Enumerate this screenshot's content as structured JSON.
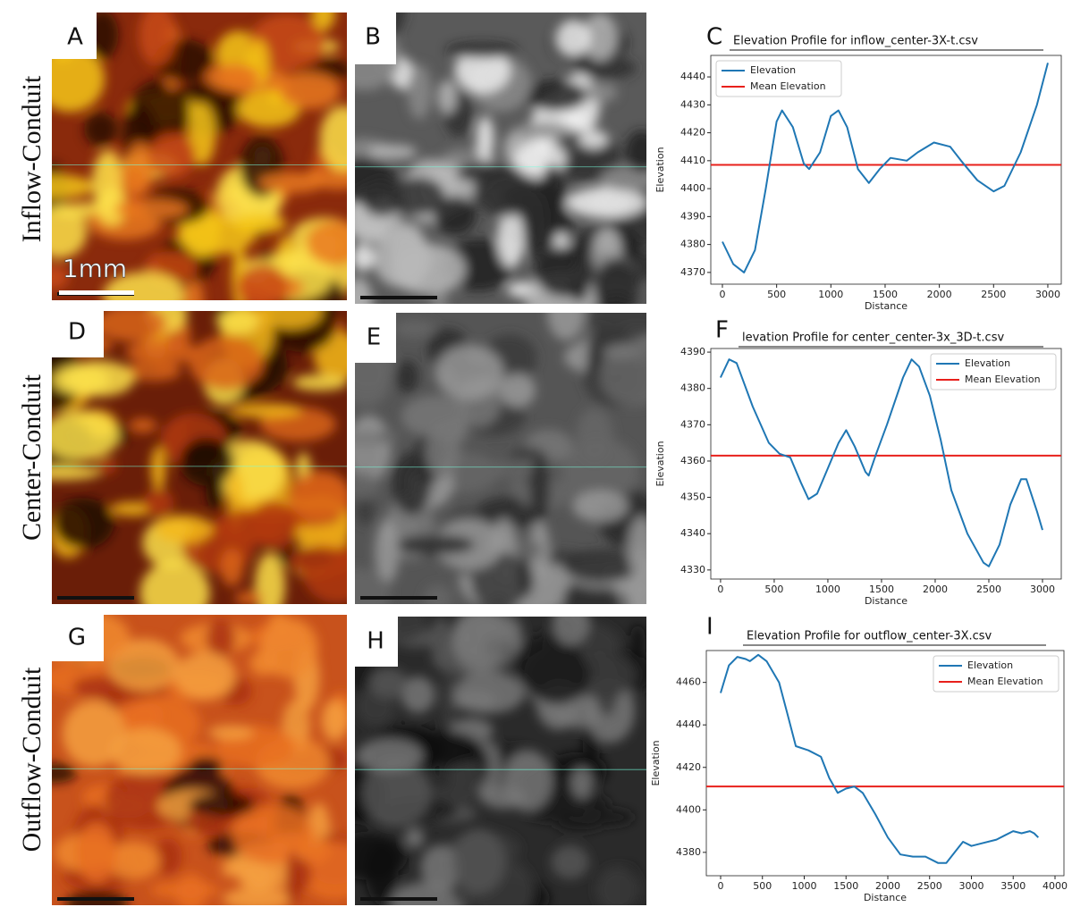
{
  "panels": {
    "letters": [
      "A",
      "B",
      "D",
      "E",
      "G",
      "H"
    ],
    "rows": [
      "Inflow-Conduit",
      "Center-Conduit",
      "Outflow-Conduit"
    ],
    "scale_label": "1mm"
  },
  "chart_data": [
    {
      "type": "line",
      "panel": "C",
      "title": "Elevation Profile for inflow_center-3X-t.csv",
      "x_label": "Distance",
      "y_label": "Elevation",
      "legend": "upper left",
      "xlim": [
        -107,
        3124
      ],
      "ylim": [
        4365.8,
        4447.7
      ],
      "xticks": [
        0,
        500,
        1000,
        1500,
        2000,
        2500,
        3000
      ],
      "yticks": [
        4370,
        4380,
        4390,
        4400,
        4410,
        4420,
        4430,
        4440
      ],
      "series": [
        {
          "name": "Elevation",
          "color": "#1f77b4",
          "x": [
            0,
            100,
            200,
            300,
            400,
            500,
            550,
            650,
            750,
            800,
            900,
            1000,
            1070,
            1150,
            1250,
            1350,
            1450,
            1550,
            1700,
            1800,
            1950,
            2100,
            2200,
            2350,
            2500,
            2600,
            2750,
            2900,
            3000
          ],
          "values": [
            4381,
            4373,
            4370,
            4378,
            4400,
            4424,
            4428,
            4422,
            4409,
            4407,
            4413,
            4426,
            4428,
            4422,
            4407,
            4402,
            4407,
            4411,
            4410,
            4413,
            4416.5,
            4415,
            4410,
            4403,
            4399,
            4401,
            4413,
            4430,
            4445
          ]
        }
      ],
      "mean_line": {
        "name": "Mean Elevation",
        "color": "#e8201b",
        "value": 4408.5
      }
    },
    {
      "type": "line",
      "panel": "F",
      "title": "levation Profile for center_center-3x_3D-t.csv",
      "x_label": "Distance",
      "y_label": "Elevation",
      "legend": "upper right",
      "xlim": [
        -91,
        3175
      ],
      "ylim": [
        4327.5,
        4391
      ],
      "xticks": [
        0,
        500,
        1000,
        1500,
        2000,
        2500,
        3000
      ],
      "yticks": [
        4330,
        4340,
        4350,
        4360,
        4370,
        4380,
        4390
      ],
      "series": [
        {
          "name": "Elevation",
          "color": "#1f77b4",
          "x": [
            0,
            80,
            150,
            300,
            450,
            550,
            650,
            750,
            820,
            900,
            1000,
            1100,
            1170,
            1250,
            1350,
            1380,
            1450,
            1550,
            1700,
            1780,
            1850,
            1950,
            2050,
            2150,
            2300,
            2450,
            2500,
            2600,
            2700,
            2800,
            2850,
            2950,
            3000
          ],
          "values": [
            4383,
            4388,
            4387,
            4375,
            4365,
            4362,
            4361,
            4354,
            4349.5,
            4351,
            4358,
            4365,
            4368.5,
            4364,
            4357,
            4356,
            4362,
            4370,
            4383,
            4388,
            4386,
            4378,
            4366,
            4352,
            4340,
            4332,
            4331,
            4337,
            4348,
            4355,
            4355,
            4346,
            4341
          ]
        }
      ],
      "mean_line": {
        "name": "Mean Elevation",
        "color": "#e8201b",
        "value": 4361.5
      }
    },
    {
      "type": "line",
      "panel": "I",
      "title": "Elevation Profile for outflow_center-3X.csv",
      "x_label": "Distance",
      "y_label": "Elevation",
      "legend": "upper right",
      "xlim": [
        -171,
        4107
      ],
      "ylim": [
        4369,
        4475
      ],
      "xticks": [
        0,
        500,
        1000,
        1500,
        2000,
        2500,
        3000,
        3500,
        4000
      ],
      "yticks": [
        4380,
        4400,
        4420,
        4440,
        4460
      ],
      "series": [
        {
          "name": "Elevation",
          "color": "#1f77b4",
          "x": [
            0,
            100,
            200,
            300,
            350,
            450,
            550,
            700,
            800,
            900,
            1050,
            1200,
            1300,
            1400,
            1500,
            1600,
            1700,
            1850,
            2000,
            2150,
            2300,
            2450,
            2600,
            2700,
            2800,
            2900,
            3000,
            3100,
            3300,
            3400,
            3500,
            3600,
            3700,
            3750,
            3800
          ],
          "values": [
            4455,
            4468,
            4472,
            4471,
            4470,
            4473,
            4470,
            4460,
            4445,
            4430,
            4428,
            4425,
            4415,
            4408,
            4410,
            4411,
            4408,
            4398,
            4387,
            4379,
            4378,
            4378,
            4375,
            4375,
            4380,
            4385,
            4383,
            4384,
            4386,
            4388,
            4390,
            4389,
            4390,
            4389,
            4387
          ]
        }
      ],
      "mean_line": {
        "name": "Mean Elevation",
        "color": "#e8201b",
        "value": 4411
      }
    }
  ]
}
